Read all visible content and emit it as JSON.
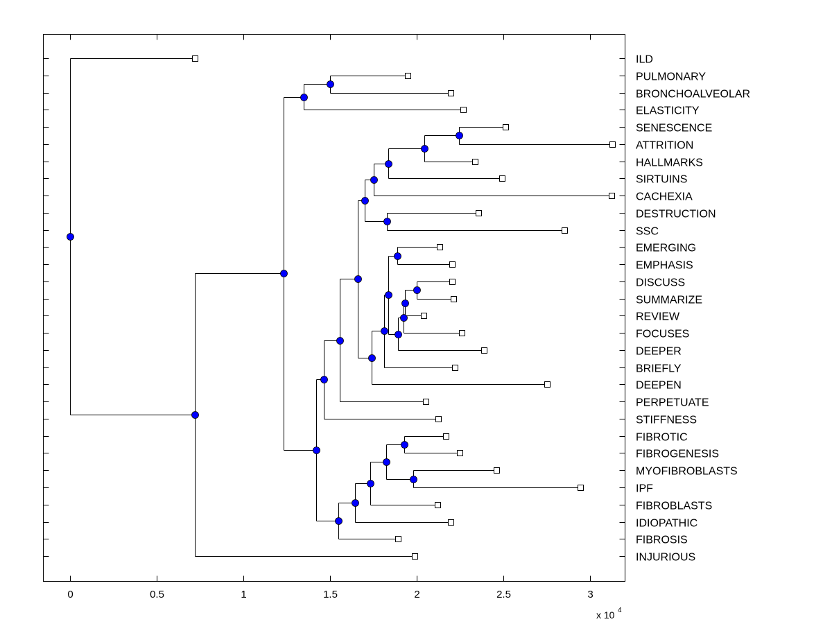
{
  "chart_data": {
    "type": "dendrogram",
    "title": "",
    "xlabel": "",
    "ylabel": "",
    "x_multiplier_label": "x 10",
    "x_multiplier_exponent": "4",
    "xlim": [
      -0.155,
      3.2
    ],
    "xticks": [
      0,
      0.5,
      1,
      1.5,
      2,
      2.5,
      3
    ],
    "xtick_labels": [
      "0",
      "0.5",
      "1",
      "1.5",
      "2",
      "2.5",
      "3"
    ],
    "grid": false,
    "colors": {
      "line": "#000000",
      "node_fill": "#0000ff",
      "leaf_fill": "#ffffff"
    },
    "leaves": [
      {
        "id": "ILD",
        "value": 0.718
      },
      {
        "id": "PULMONARY",
        "value": 1.945
      },
      {
        "id": "BRONCHOALVEOLAR",
        "value": 2.196
      },
      {
        "id": "ELASTICITY",
        "value": 2.265
      },
      {
        "id": "SENESCENCE",
        "value": 2.512
      },
      {
        "id": "ATTRITION",
        "value": 3.127
      },
      {
        "id": "HALLMARKS",
        "value": 2.335
      },
      {
        "id": "SIRTUINS",
        "value": 2.491
      },
      {
        "id": "CACHEXIA",
        "value": 3.123
      },
      {
        "id": "DESTRUCTION",
        "value": 2.356
      },
      {
        "id": "SSC",
        "value": 2.852
      },
      {
        "id": "EMERGING",
        "value": 2.13
      },
      {
        "id": "EMPHASIS",
        "value": 2.204
      },
      {
        "id": "DISCUSS",
        "value": 2.204
      },
      {
        "id": "SUMMARIZE",
        "value": 2.212
      },
      {
        "id": "REVIEW",
        "value": 2.04
      },
      {
        "id": "FOCUSES",
        "value": 2.257
      },
      {
        "id": "DEEPER",
        "value": 2.388
      },
      {
        "id": "BRIEFLY",
        "value": 2.22
      },
      {
        "id": "DEEPEN",
        "value": 2.75
      },
      {
        "id": "PERPETUATE",
        "value": 2.052
      },
      {
        "id": "STIFFNESS",
        "value": 2.122
      },
      {
        "id": "FIBROTIC",
        "value": 2.167
      },
      {
        "id": "FIBROGENESIS",
        "value": 2.245
      },
      {
        "id": "MYOFIBROBLASTS",
        "value": 2.458
      },
      {
        "id": "IPF",
        "value": 2.943
      },
      {
        "id": "FIBROBLASTS",
        "value": 2.118
      },
      {
        "id": "IDIOPATHIC",
        "value": 2.196
      },
      {
        "id": "FIBROSIS",
        "value": 1.892
      },
      {
        "id": "INJURIOUS",
        "value": 1.986
      }
    ],
    "nodes": [
      {
        "id": "n_pul_bro",
        "value": 1.498,
        "children": [
          "PULMONARY",
          "BRONCHOALVEOLAR"
        ]
      },
      {
        "id": "n_top",
        "value": 1.346,
        "children": [
          "n_pul_bro",
          "ELASTICITY"
        ]
      },
      {
        "id": "n_sen_att",
        "value": 2.241,
        "children": [
          "SENESCENCE",
          "ATTRITION"
        ]
      },
      {
        "id": "n_hall",
        "value": 2.044,
        "children": [
          "n_sen_att",
          "HALLMARKS"
        ]
      },
      {
        "id": "n_sirt",
        "value": 1.834,
        "children": [
          "n_hall",
          "SIRTUINS"
        ]
      },
      {
        "id": "n_cach",
        "value": 1.752,
        "children": [
          "n_sirt",
          "CACHEXIA"
        ]
      },
      {
        "id": "n_dest_ssc",
        "value": 1.826,
        "children": [
          "DESTRUCTION",
          "SSC"
        ]
      },
      {
        "id": "n_upper",
        "value": 1.699,
        "children": [
          "n_cach",
          "n_dest_ssc"
        ]
      },
      {
        "id": "n_emer_emph",
        "value": 1.888,
        "children": [
          "EMERGING",
          "EMPHASIS"
        ]
      },
      {
        "id": "n_disc_summ",
        "value": 1.999,
        "children": [
          "DISCUSS",
          "SUMMARIZE"
        ]
      },
      {
        "id": "n_review",
        "value": 1.929,
        "children": [
          "n_disc_summ",
          "REVIEW"
        ]
      },
      {
        "id": "n_focuses",
        "value": 1.921,
        "children": [
          "n_review",
          "FOCUSES"
        ]
      },
      {
        "id": "n_deeper",
        "value": 1.892,
        "children": [
          "n_focuses",
          "DEEPER"
        ]
      },
      {
        "id": "n_mid",
        "value": 1.834,
        "children": [
          "n_emer_emph",
          "n_deeper"
        ]
      },
      {
        "id": "n_briefly",
        "value": 1.81,
        "children": [
          "n_mid",
          "BRIEFLY"
        ]
      },
      {
        "id": "n_deepen",
        "value": 1.74,
        "children": [
          "n_briefly",
          "DEEPEN"
        ]
      },
      {
        "id": "n_center",
        "value": 1.658,
        "children": [
          "n_upper",
          "n_deepen"
        ]
      },
      {
        "id": "n_perp",
        "value": 1.555,
        "children": [
          "n_center",
          "PERPETUATE"
        ]
      },
      {
        "id": "n_stiff",
        "value": 1.461,
        "children": [
          "n_perp",
          "STIFFNESS"
        ]
      },
      {
        "id": "n_fibrotic",
        "value": 1.925,
        "children": [
          "FIBROTIC",
          "FIBROGENESIS"
        ]
      },
      {
        "id": "n_myo_ipf",
        "value": 1.978,
        "children": [
          "MYOFIBROBLASTS",
          "IPF"
        ]
      },
      {
        "id": "n_fib4",
        "value": 1.822,
        "children": [
          "n_fibrotic",
          "n_myo_ipf"
        ]
      },
      {
        "id": "n_fibroblasts",
        "value": 1.732,
        "children": [
          "n_fib4",
          "FIBROBLASTS"
        ]
      },
      {
        "id": "n_idio",
        "value": 1.642,
        "children": [
          "n_fibroblasts",
          "IDIOPATHIC"
        ]
      },
      {
        "id": "n_fibrosis",
        "value": 1.547,
        "children": [
          "n_idio",
          "FIBROSIS"
        ]
      },
      {
        "id": "n_lower",
        "value": 1.42,
        "children": [
          "n_stiff",
          "n_fibrosis"
        ]
      },
      {
        "id": "n_main",
        "value": 1.231,
        "children": [
          "n_top",
          "n_lower"
        ]
      },
      {
        "id": "n_inj",
        "value": 0.718,
        "children": [
          "n_main",
          "INJURIOUS"
        ]
      },
      {
        "id": "root",
        "value": 0.0,
        "children": [
          "ILD",
          "n_inj"
        ]
      }
    ]
  }
}
